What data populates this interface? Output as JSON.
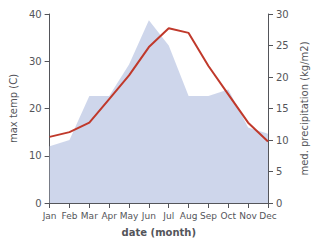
{
  "chart_data": {
    "type": "line",
    "xlabel": "date (month)",
    "ylabel": "max temp (C)",
    "y2label": "med. precipitation (kg/m2)",
    "categories": [
      "Jan",
      "Feb",
      "Mar",
      "Apr",
      "May",
      "Jun",
      "Jul",
      "Aug",
      "Sep",
      "Oct",
      "Nov",
      "Dec"
    ],
    "series": [
      {
        "type": "area",
        "axis": "y2",
        "color": "#c5cfe8",
        "values": [
          9,
          10,
          17,
          17,
          22,
          29,
          25,
          17,
          17,
          18,
          12,
          11
        ]
      },
      {
        "type": "line",
        "color": "#c0392b",
        "values": [
          14,
          15,
          17,
          22,
          27,
          33,
          37,
          36,
          29,
          23,
          17,
          13
        ]
      }
    ],
    "ylim": [
      0,
      40
    ],
    "yticks": [
      0,
      10,
      20,
      30,
      40
    ],
    "y2lim": [
      0,
      30
    ],
    "y2ticks": [
      0,
      5,
      10,
      15,
      20,
      25,
      30
    ],
    "grid": false
  }
}
